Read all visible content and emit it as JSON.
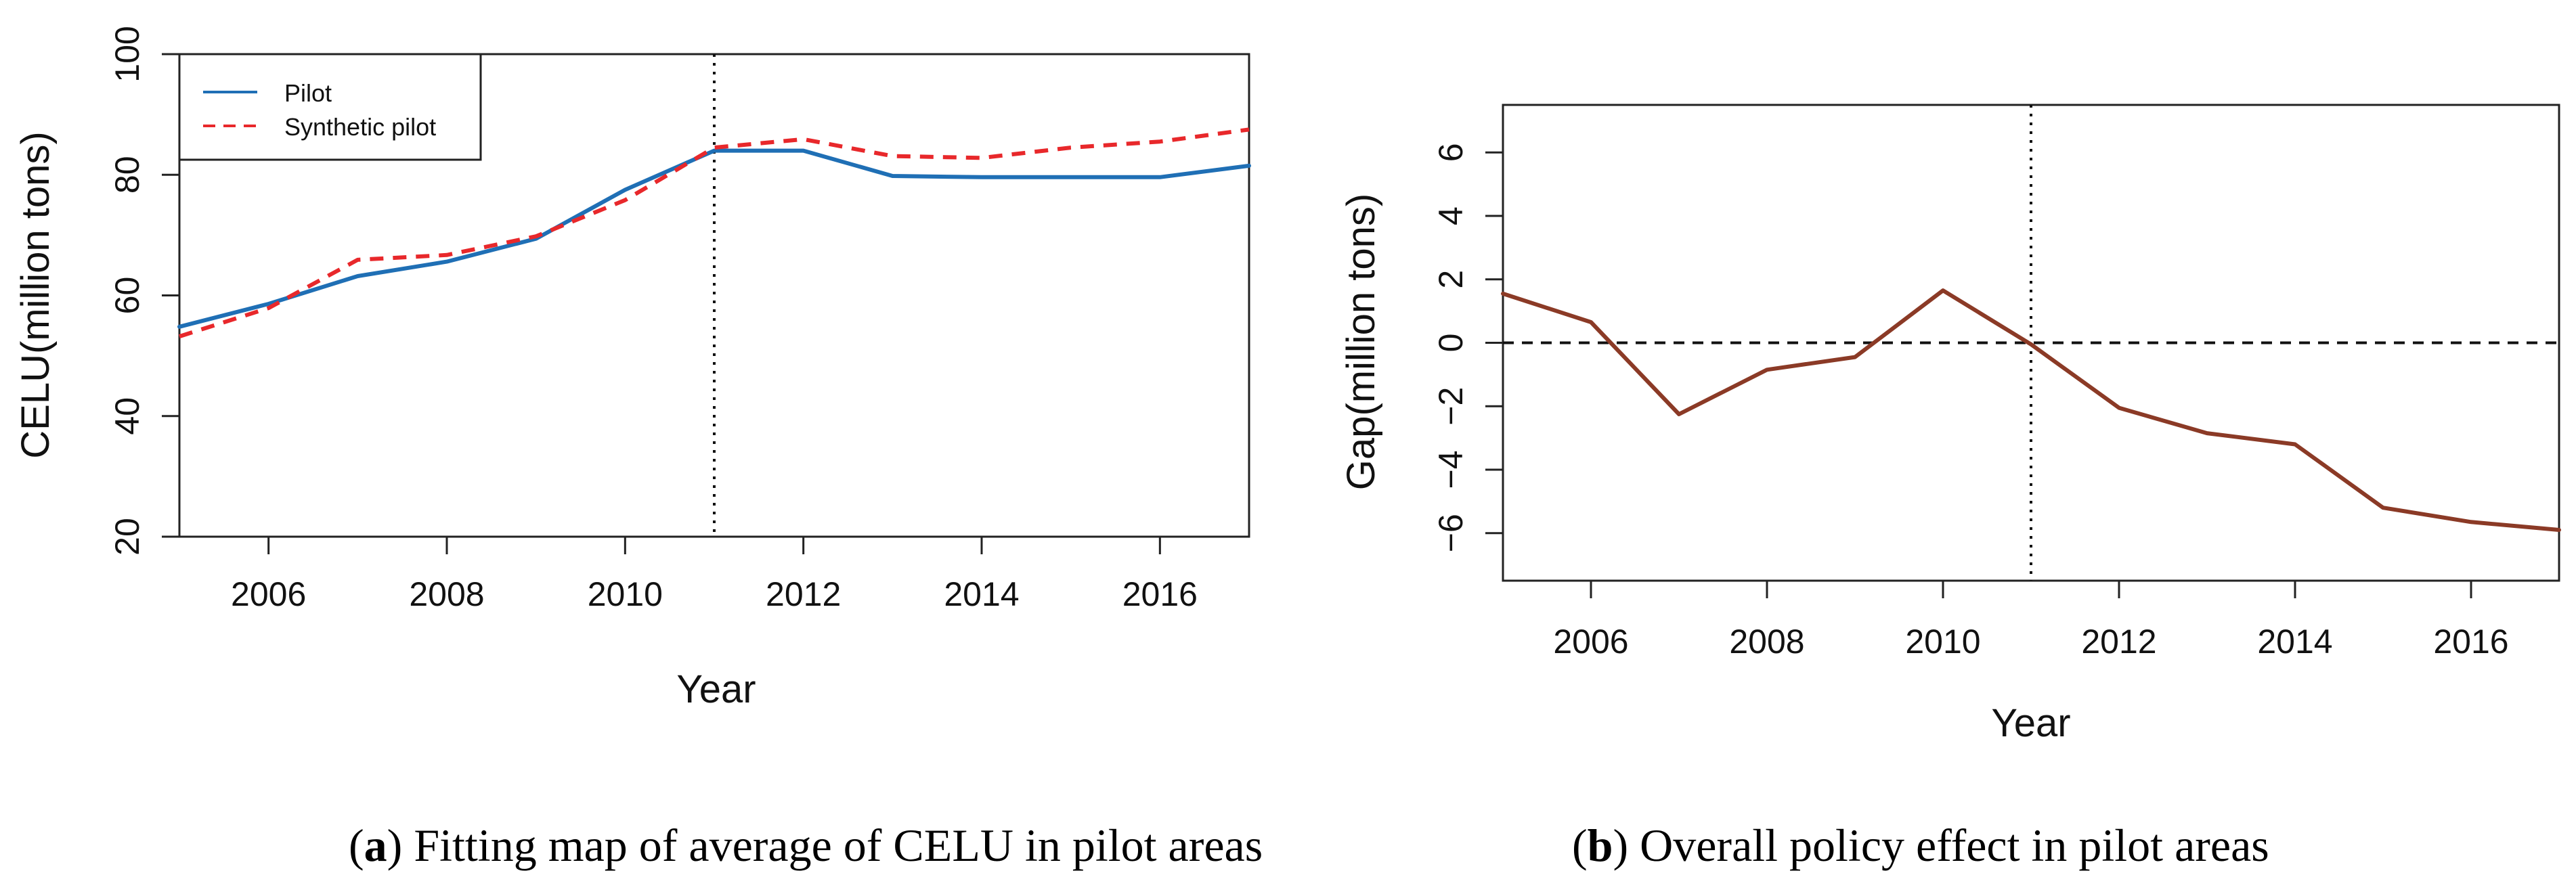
{
  "chart_data": [
    {
      "type": "line",
      "id": "a",
      "xlabel": "Year",
      "ylabel": "CELU(million tons)",
      "xlim": [
        2005,
        2017
      ],
      "ylim": [
        20,
        100
      ],
      "xticks": [
        2006,
        2008,
        2010,
        2012,
        2014,
        2016
      ],
      "xtick_labels": [
        "2006",
        "2008",
        "2010",
        "2012",
        "2014",
        "2016"
      ],
      "yticks": [
        20,
        40,
        60,
        80,
        100
      ],
      "ytick_labels": [
        "20",
        "40",
        "60",
        "80",
        "100"
      ],
      "vline": 2011,
      "legend": {
        "position": "top-left",
        "entries": [
          "Pilot",
          "Synthetic pilot"
        ]
      },
      "series": [
        {
          "name": "Pilot",
          "color": "#1f6fb5",
          "style": "solid",
          "x": [
            2005,
            2006,
            2007,
            2008,
            2009,
            2010,
            2011,
            2012,
            2013,
            2014,
            2015,
            2016,
            2017
          ],
          "values": [
            54.8,
            58.6,
            63.2,
            65.6,
            69.4,
            77.5,
            84.0,
            84.0,
            79.8,
            79.6,
            79.6,
            79.6,
            81.5
          ]
        },
        {
          "name": "Synthetic pilot",
          "color": "#e8282b",
          "style": "dashed",
          "x": [
            2005,
            2006,
            2007,
            2008,
            2009,
            2010,
            2011,
            2012,
            2013,
            2014,
            2015,
            2016,
            2017
          ],
          "values": [
            53.2,
            57.9,
            65.9,
            66.7,
            69.8,
            75.8,
            84.5,
            85.9,
            83.1,
            82.8,
            84.5,
            85.5,
            87.5
          ]
        }
      ],
      "caption_letter": "a",
      "caption_text": "Fitting map of average of CELU in pilot areas"
    },
    {
      "type": "line",
      "id": "b",
      "xlabel": "Year",
      "ylabel": "Gap(million tons)",
      "xlim": [
        2005,
        2017
      ],
      "ylim": [
        -7.5,
        7.5
      ],
      "xticks": [
        2006,
        2008,
        2010,
        2012,
        2014,
        2016
      ],
      "xtick_labels": [
        "2006",
        "2008",
        "2010",
        "2012",
        "2014",
        "2016"
      ],
      "yticks": [
        -6,
        -4,
        -2,
        0,
        2,
        4,
        6
      ],
      "ytick_labels": [
        "−6",
        "−4",
        "−2",
        "0",
        "2",
        "4",
        "6"
      ],
      "vline": 2011,
      "hline": 0,
      "series": [
        {
          "name": "Gap",
          "color": "#8b3a26",
          "style": "solid",
          "x": [
            2005,
            2006,
            2007,
            2008,
            2009,
            2010,
            2011,
            2012,
            2013,
            2014,
            2015,
            2016,
            2017
          ],
          "values": [
            1.55,
            0.65,
            -2.25,
            -0.85,
            -0.45,
            1.65,
            -0.05,
            -2.05,
            -2.85,
            -3.2,
            -5.2,
            -5.65,
            -5.9
          ]
        }
      ],
      "caption_letter": "b",
      "caption_text": "Overall policy effect in pilot areas"
    }
  ]
}
